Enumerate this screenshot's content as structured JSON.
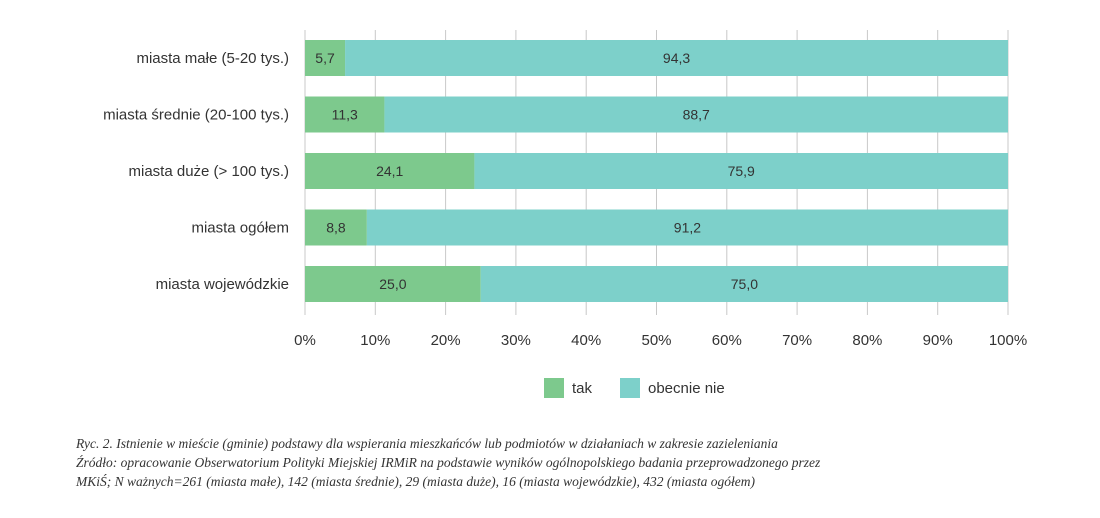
{
  "chart_data": {
    "type": "bar",
    "orientation": "horizontal",
    "stacked": true,
    "categories": [
      "miasta małe (5-20 tys.)",
      "miasta średnie (20-100 tys.)",
      "miasta duże (> 100 tys.)",
      "miasta ogółem",
      "miasta wojewódzkie"
    ],
    "series": [
      {
        "name": "tak",
        "color": "#7dc98d",
        "values": [
          5.7,
          11.3,
          24.1,
          8.8,
          25.0
        ],
        "labels": [
          "5,7",
          "11,3",
          "24,1",
          "8,8",
          "25,0"
        ]
      },
      {
        "name": "obecnie nie",
        "color": "#7dd0ca",
        "values": [
          94.3,
          88.7,
          75.9,
          91.2,
          75.0
        ],
        "labels": [
          "94,3",
          "88,7",
          "75,9",
          "91,2",
          "75,0"
        ]
      }
    ],
    "xlim": [
      0,
      100
    ],
    "xticks": [
      "0%",
      "10%",
      "20%",
      "30%",
      "40%",
      "50%",
      "60%",
      "70%",
      "80%",
      "90%",
      "100%"
    ],
    "grid": true,
    "legend_position": "bottom"
  },
  "caption": {
    "line1": "Ryc. 2. Istnienie w mieście (gminie) podstawy dla wspierania mieszkańców lub podmiotów w działaniach w zakresie zazieleniania",
    "line2": "Źródło: opracowanie Obserwatorium Polityki Miejskiej IRMiR na podstawie wyników ogólnopolskiego badania przeprowadzonego przez",
    "line3": "MKiŚ; N ważnych=261 (miasta małe), 142 (miasta średnie), 29 (miasta duże), 16 (miasta wojewódzkie), 432 (miasta ogółem)"
  }
}
